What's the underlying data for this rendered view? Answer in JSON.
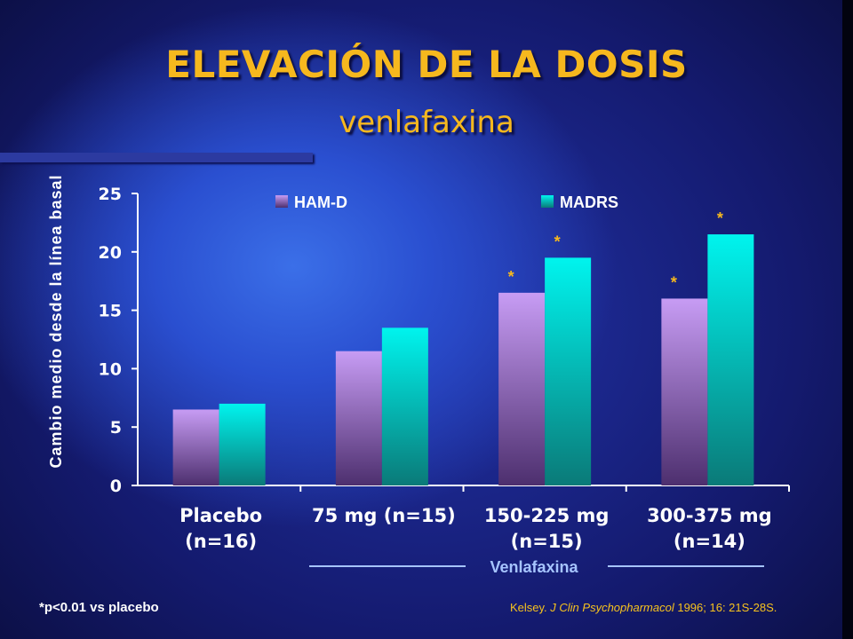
{
  "title": "ELEVACIÓN DE LA DOSIS",
  "subtitle": "venlafaxina",
  "footnote": "*p<0.01 vs placebo",
  "citation": {
    "prefix": "Kelsey. ",
    "journal": "J Clin Psychopharmacol",
    "suffix": " 1996; 16: 21S-28S."
  },
  "colors": {
    "title": "#f6b81e",
    "ham_d": "#c79cf4",
    "madrs": "#00f2ee",
    "axis_text": "#ffffff",
    "bracket": "#a6c4ff",
    "asterisk": "#f6b81e"
  },
  "chart_data": {
    "type": "bar",
    "ylabel": "Cambio medio desde la línea basal",
    "ylim": [
      0,
      25
    ],
    "yticks": [
      "0",
      "5",
      "10",
      "15",
      "20",
      "25"
    ],
    "categories": [
      [
        "Placebo",
        "(n=16)"
      ],
      [
        "75 mg (n=15)",
        ""
      ],
      [
        "150-225 mg",
        "(n=15)"
      ],
      [
        "300-375 mg",
        "(n=14)"
      ]
    ],
    "series": [
      {
        "name": "HAM-D",
        "values": [
          6.5,
          11.5,
          16.5,
          16
        ],
        "significant": [
          false,
          false,
          true,
          true
        ]
      },
      {
        "name": "MADRS",
        "values": [
          7,
          13.5,
          19.5,
          21.5
        ],
        "significant": [
          false,
          false,
          true,
          true
        ]
      }
    ],
    "significance_marker": "*",
    "bracket_label": "Venlafaxina",
    "legend_position": "top"
  }
}
